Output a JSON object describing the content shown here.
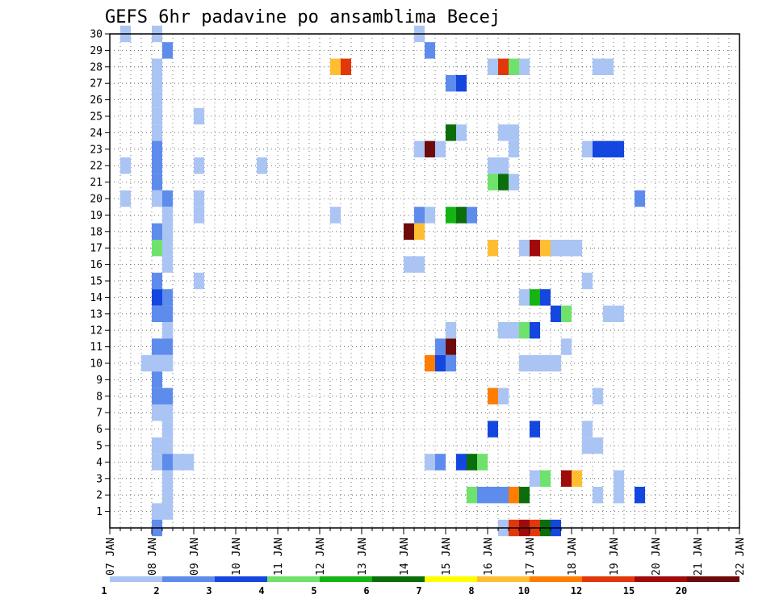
{
  "chart_data": {
    "type": "heatmap",
    "title": "GEFS 6hr padavine po ansamblima Becej",
    "x_tick_labels": [
      "07 JAN",
      "08 JAN",
      "09 JAN",
      "10 JAN",
      "11 JAN",
      "12 JAN",
      "13 JAN",
      "14 JAN",
      "15 JAN",
      "16 JAN",
      "17 JAN",
      "18 JAN",
      "19 JAN",
      "20 JAN",
      "21 JAN",
      "22 JAN"
    ],
    "y_tick_labels": [
      "1",
      "2",
      "3",
      "4",
      "5",
      "6",
      "7",
      "8",
      "9",
      "10",
      "11",
      "12",
      "13",
      "14",
      "15",
      "16",
      "17",
      "18",
      "19",
      "20",
      "21",
      "22",
      "23",
      "24",
      "25",
      "26",
      "27",
      "28",
      "29",
      "30"
    ],
    "xlim": [
      0,
      60
    ],
    "ylim": [
      0,
      30
    ],
    "x_unit": "6-hour steps from 07 JAN 00z",
    "grid": true,
    "legend_position": "bottom",
    "legend": {
      "labels": [
        "1",
        "2",
        "3",
        "4",
        "5",
        "6",
        "7",
        "8",
        "10",
        "12",
        "15",
        "20"
      ],
      "colors": [
        "#aac4f4",
        "#5e8ced",
        "#1446e0",
        "#6ee26a",
        "#14b414",
        "#0a6e0a",
        "#ffff00",
        "#ffbe32",
        "#ff7d00",
        "#e1370a",
        "#a00a0a",
        "#6e0a0a"
      ]
    },
    "cells": [
      [
        1,
        30,
        1
      ],
      [
        4,
        30,
        1
      ],
      [
        5,
        29,
        2
      ],
      [
        4,
        28,
        1
      ],
      [
        4,
        27,
        1
      ],
      [
        4,
        26,
        1
      ],
      [
        4,
        25,
        1
      ],
      [
        8,
        25,
        1
      ],
      [
        4,
        24,
        1
      ],
      [
        4,
        23,
        2
      ],
      [
        1,
        22,
        1
      ],
      [
        4,
        22,
        2
      ],
      [
        8,
        22,
        1
      ],
      [
        4,
        21,
        2
      ],
      [
        1,
        20,
        1
      ],
      [
        4,
        20,
        1
      ],
      [
        5,
        20,
        2
      ],
      [
        8,
        20,
        1
      ],
      [
        5,
        19,
        1
      ],
      [
        8,
        19,
        1
      ],
      [
        4,
        18,
        2
      ],
      [
        5,
        18,
        1
      ],
      [
        4,
        17,
        4
      ],
      [
        5,
        17,
        1
      ],
      [
        5,
        16,
        1
      ],
      [
        4,
        15,
        2
      ],
      [
        8,
        15,
        1
      ],
      [
        4,
        14,
        3
      ],
      [
        5,
        14,
        2
      ],
      [
        4,
        13,
        2
      ],
      [
        5,
        13,
        2
      ],
      [
        5,
        12,
        1
      ],
      [
        4,
        11,
        2
      ],
      [
        5,
        11,
        2
      ],
      [
        3,
        10,
        1
      ],
      [
        4,
        10,
        1
      ],
      [
        5,
        10,
        1
      ],
      [
        4,
        9,
        2
      ],
      [
        4,
        8,
        2
      ],
      [
        5,
        8,
        2
      ],
      [
        4,
        7,
        1
      ],
      [
        5,
        7,
        1
      ],
      [
        5,
        6,
        1
      ],
      [
        4,
        5,
        1
      ],
      [
        5,
        5,
        1
      ],
      [
        4,
        4,
        1
      ],
      [
        5,
        4,
        2
      ],
      [
        6,
        4,
        1
      ],
      [
        7,
        4,
        1
      ],
      [
        5,
        3,
        1
      ],
      [
        5,
        2,
        1
      ],
      [
        5,
        1,
        1
      ],
      [
        4,
        1,
        1
      ],
      [
        4,
        0,
        2
      ],
      [
        21,
        28,
        8
      ],
      [
        22,
        28,
        10
      ],
      [
        14,
        22,
        1
      ],
      [
        21,
        19,
        1
      ],
      [
        29,
        30,
        1
      ],
      [
        30,
        29,
        2
      ],
      [
        29,
        23,
        1
      ],
      [
        30,
        23,
        12
      ],
      [
        31,
        23,
        1
      ],
      [
        29,
        19,
        2
      ],
      [
        30,
        19,
        1
      ],
      [
        28,
        18,
        12
      ],
      [
        29,
        18,
        8
      ],
      [
        28,
        16,
        1
      ],
      [
        29,
        16,
        1
      ],
      [
        31,
        11,
        2
      ],
      [
        32,
        11,
        12
      ],
      [
        30,
        10,
        9
      ],
      [
        31,
        10,
        3
      ],
      [
        32,
        10,
        2
      ],
      [
        30,
        4,
        1
      ],
      [
        31,
        4,
        2
      ],
      [
        32,
        27,
        2
      ],
      [
        33,
        27,
        3
      ],
      [
        32,
        24,
        6
      ],
      [
        33,
        24,
        1
      ],
      [
        32,
        19,
        5
      ],
      [
        33,
        19,
        6
      ],
      [
        34,
        19,
        2
      ],
      [
        32,
        12,
        1
      ],
      [
        33,
        4,
        3
      ],
      [
        34,
        4,
        6
      ],
      [
        35,
        4,
        4
      ],
      [
        34,
        2,
        4
      ],
      [
        35,
        2,
        2
      ],
      [
        36,
        2,
        2
      ],
      [
        36,
        28,
        1
      ],
      [
        37,
        28,
        10
      ],
      [
        38,
        28,
        4
      ],
      [
        39,
        28,
        1
      ],
      [
        37,
        24,
        1
      ],
      [
        38,
        24,
        1
      ],
      [
        38,
        23,
        1
      ],
      [
        36,
        22,
        1
      ],
      [
        37,
        22,
        1
      ],
      [
        36,
        21,
        4
      ],
      [
        37,
        21,
        6
      ],
      [
        38,
        21,
        1
      ],
      [
        36,
        17,
        8
      ],
      [
        37,
        12,
        1
      ],
      [
        38,
        12,
        1
      ],
      [
        39,
        12,
        4
      ],
      [
        40,
        12,
        3
      ],
      [
        39,
        14,
        1
      ],
      [
        40,
        14,
        5
      ],
      [
        41,
        14,
        3
      ],
      [
        39,
        17,
        1
      ],
      [
        40,
        17,
        11
      ],
      [
        41,
        17,
        8
      ],
      [
        42,
        17,
        1
      ],
      [
        43,
        17,
        1
      ],
      [
        44,
        17,
        1
      ],
      [
        42,
        13,
        3
      ],
      [
        43,
        13,
        4
      ],
      [
        43,
        11,
        1
      ],
      [
        39,
        10,
        1
      ],
      [
        40,
        10,
        1
      ],
      [
        41,
        10,
        1
      ],
      [
        42,
        10,
        1
      ],
      [
        36,
        8,
        9
      ],
      [
        37,
        8,
        1
      ],
      [
        36,
        6,
        3
      ],
      [
        40,
        6,
        3
      ],
      [
        40,
        3,
        1
      ],
      [
        41,
        3,
        4
      ],
      [
        43,
        3,
        11
      ],
      [
        44,
        3,
        8
      ],
      [
        37,
        2,
        2
      ],
      [
        38,
        2,
        9
      ],
      [
        39,
        2,
        6
      ],
      [
        37,
        0,
        1
      ],
      [
        38,
        0,
        10
      ],
      [
        39,
        0,
        11
      ],
      [
        40,
        0,
        10
      ],
      [
        41,
        0,
        6
      ],
      [
        42,
        0,
        3
      ],
      [
        45,
        23,
        1
      ],
      [
        46,
        23,
        3
      ],
      [
        47,
        23,
        3
      ],
      [
        48,
        23,
        3
      ],
      [
        46,
        28,
        1
      ],
      [
        47,
        28,
        1
      ],
      [
        45,
        15,
        1
      ],
      [
        47,
        13,
        1
      ],
      [
        48,
        13,
        1
      ],
      [
        45,
        6,
        1
      ],
      [
        45,
        5,
        1
      ],
      [
        46,
        5,
        1
      ],
      [
        46,
        8,
        1
      ],
      [
        46,
        2,
        1
      ],
      [
        48,
        2,
        1
      ],
      [
        48,
        3,
        1
      ],
      [
        50,
        2,
        3
      ],
      [
        50,
        20,
        2
      ]
    ]
  }
}
